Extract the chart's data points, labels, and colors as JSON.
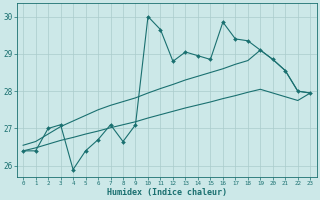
{
  "title": "",
  "xlabel": "Humidex (Indice chaleur)",
  "ylabel": "",
  "bg_color": "#cce8e8",
  "line_color": "#1a7070",
  "grid_color": "#aacccc",
  "xlim": [
    -0.5,
    23.5
  ],
  "ylim": [
    25.7,
    30.35
  ],
  "yticks": [
    26,
    27,
    28,
    29,
    30
  ],
  "xticks": [
    0,
    1,
    2,
    3,
    4,
    5,
    6,
    7,
    8,
    9,
    10,
    11,
    12,
    13,
    14,
    15,
    16,
    17,
    18,
    19,
    20,
    21,
    22,
    23
  ],
  "line1_x": [
    0,
    1,
    2,
    3,
    4,
    5,
    6,
    7,
    8,
    9,
    10,
    11,
    12,
    13,
    14,
    15,
    16,
    17,
    18,
    19,
    20,
    21,
    22,
    23
  ],
  "line1_y": [
    26.4,
    26.4,
    27.0,
    27.1,
    25.9,
    26.4,
    26.7,
    27.1,
    26.65,
    27.1,
    30.0,
    29.65,
    28.8,
    29.05,
    28.95,
    28.85,
    29.85,
    29.4,
    29.35,
    29.1,
    28.85,
    28.55,
    28.0,
    27.95
  ],
  "line2_x": [
    0,
    1,
    2,
    3,
    4,
    5,
    6,
    7,
    8,
    9,
    10,
    11,
    12,
    13,
    14,
    15,
    16,
    17,
    18,
    19,
    20,
    21,
    22,
    23
  ],
  "line2_y": [
    26.55,
    26.65,
    26.85,
    27.05,
    27.2,
    27.35,
    27.5,
    27.62,
    27.72,
    27.82,
    27.95,
    28.07,
    28.18,
    28.3,
    28.4,
    28.5,
    28.6,
    28.72,
    28.82,
    29.1,
    28.85,
    28.55,
    28.0,
    27.95
  ],
  "line3_x": [
    0,
    1,
    2,
    3,
    4,
    5,
    6,
    7,
    8,
    9,
    10,
    11,
    12,
    13,
    14,
    15,
    16,
    17,
    18,
    19,
    20,
    21,
    22,
    23
  ],
  "line3_y": [
    26.4,
    26.48,
    26.58,
    26.68,
    26.76,
    26.85,
    26.93,
    27.02,
    27.1,
    27.18,
    27.28,
    27.37,
    27.46,
    27.55,
    27.63,
    27.71,
    27.8,
    27.88,
    27.97,
    28.05,
    27.95,
    27.85,
    27.75,
    27.95
  ]
}
